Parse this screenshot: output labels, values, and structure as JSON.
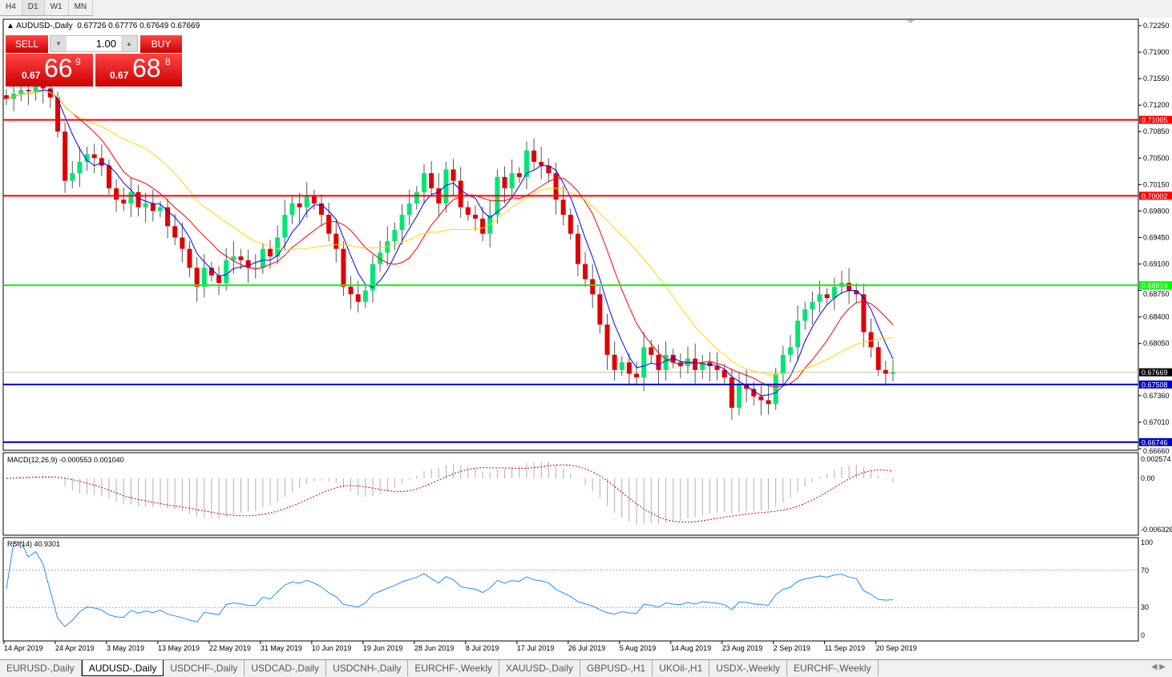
{
  "timeframes": [
    "H4",
    "D1",
    "W1",
    "MN"
  ],
  "selected_timeframe": "D1",
  "header": {
    "symbol": "AUDUSD-,Daily",
    "ohlc": "0.67726 0.67776 0.67649 0.67669"
  },
  "trade": {
    "sell_label": "SELL",
    "buy_label": "BUY",
    "volume": "1.00",
    "sell_prefix": "0.67",
    "sell_big": "66",
    "sell_sup": "9",
    "buy_prefix": "0.67",
    "buy_big": "68",
    "buy_sup": "8"
  },
  "price_axis": {
    "ticks": [
      "0.72250",
      "0.71900",
      "0.71550",
      "0.71200",
      "0.70850",
      "0.70500",
      "0.70150",
      "0.69800",
      "0.69450",
      "0.69100",
      "0.68750",
      "0.68400",
      "0.68050",
      "0.67360",
      "0.67010",
      "0.66660"
    ]
  },
  "levels": [
    {
      "price": "0.71005",
      "color": "#ff0000"
    },
    {
      "price": "0.70002",
      "color": "#ff0000"
    },
    {
      "price": "0.68819",
      "color": "#00ff00"
    },
    {
      "price": "0.67508",
      "color": "#0000cc"
    },
    {
      "price": "0.66746",
      "color": "#0000cc"
    }
  ],
  "current_price": "0.67669",
  "colors": {
    "up": "#00e676",
    "down": "#e00000",
    "ma_fast": "#0000ff",
    "ma_mid": "#ff0000",
    "ma_slow": "#ffd700",
    "rsi": "#1e90ff",
    "macd_signal": "#d00000"
  },
  "macd": {
    "label": "MACD(12,26,9) -0.000553 0.001040",
    "ticks": [
      "0.002574",
      "0.00",
      "-0.006326"
    ]
  },
  "rsi": {
    "label": "RSI(14) 40.9301",
    "ticks": [
      "100",
      "70",
      "30",
      "0"
    ]
  },
  "dates": [
    "14 Apr 2019",
    "24 Apr 2019",
    "3 May 2019",
    "13 May 2019",
    "22 May 2019",
    "31 May 2019",
    "10 Jun 2019",
    "19 Jun 2019",
    "28 Jun 2019",
    "8 Jul 2019",
    "17 Jul 2019",
    "26 Jul 2019",
    "5 Aug 2019",
    "14 Aug 2019",
    "23 Aug 2019",
    "2 Sep 2019",
    "11 Sep 2019",
    "20 Sep 2019"
  ],
  "closes": [
    0.7128,
    0.7135,
    0.714,
    0.7138,
    0.7145,
    0.7142,
    0.713,
    0.7085,
    0.702,
    0.703,
    0.7045,
    0.7055,
    0.705,
    0.704,
    0.701,
    0.6995,
    0.699,
    0.7005,
    0.6985,
    0.699,
    0.698,
    0.6985,
    0.696,
    0.6945,
    0.693,
    0.6905,
    0.688,
    0.6905,
    0.6895,
    0.6885,
    0.6915,
    0.692,
    0.6915,
    0.6905,
    0.6905,
    0.693,
    0.692,
    0.6945,
    0.6975,
    0.699,
    0.6985,
    0.7,
    0.699,
    0.6975,
    0.695,
    0.693,
    0.688,
    0.687,
    0.686,
    0.6875,
    0.691,
    0.6925,
    0.694,
    0.6955,
    0.6975,
    0.699,
    0.7005,
    0.703,
    0.701,
    0.699,
    0.7035,
    0.702,
    0.6985,
    0.6975,
    0.697,
    0.695,
    0.6975,
    0.7025,
    0.701,
    0.703,
    0.7025,
    0.706,
    0.7045,
    0.704,
    0.703,
    0.6995,
    0.6975,
    0.695,
    0.691,
    0.689,
    0.687,
    0.683,
    0.679,
    0.677,
    0.678,
    0.6765,
    0.676,
    0.68,
    0.679,
    0.677,
    0.679,
    0.678,
    0.6775,
    0.6785,
    0.677,
    0.678,
    0.6775,
    0.677,
    0.676,
    0.672,
    0.675,
    0.6745,
    0.6735,
    0.673,
    0.6725,
    0.6765,
    0.679,
    0.68,
    0.6835,
    0.685,
    0.686,
    0.687,
    0.6865,
    0.688,
    0.6885,
    0.6875,
    0.687,
    0.682,
    0.68,
    0.677,
    0.6765,
    0.67669
  ],
  "tabs": [
    "EURUSD-,Daily",
    "AUDUSD-,Daily",
    "USDCHF-,Daily",
    "USDCAD-,Daily",
    "USDCNH-,Daily",
    "EURCHF-,Weekly",
    "XAUUSD-,Daily",
    "GBPUSD-,H1",
    "UKOil-,H1",
    "USDX-,Weekly",
    "EURCHF-,Weekly"
  ],
  "active_tab": "AUDUSD-,Daily"
}
